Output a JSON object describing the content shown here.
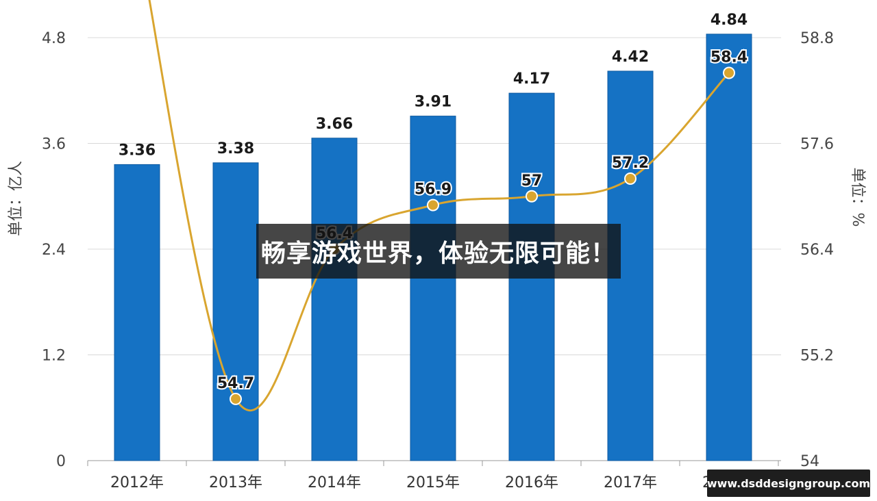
{
  "chart_data": {
    "type": "bar",
    "categories": [
      "2012年",
      "2013年",
      "2014年",
      "2015年",
      "2016年",
      "2017年",
      "2018年"
    ],
    "series": [
      {
        "type": "bar",
        "axis": "left",
        "values": [
          3.36,
          3.38,
          3.66,
          3.91,
          4.17,
          4.42,
          4.84
        ],
        "labels": [
          "3.36",
          "3.38",
          "3.66",
          "3.91",
          "4.17",
          "4.42",
          "4.84"
        ],
        "color": "#1572C4"
      },
      {
        "type": "line",
        "axis": "right",
        "values": [
          60.0,
          54.7,
          56.4,
          56.9,
          57.0,
          57.2,
          58.4
        ],
        "labels": [
          null,
          "54.7",
          "56.4",
          "56.9",
          "57",
          "57.2",
          "58.4"
        ],
        "color": "#D9A52F"
      }
    ],
    "ylabel": "单位：亿人",
    "y2label": "单位：%",
    "ylim": [
      0,
      4.8
    ],
    "y2lim": [
      54,
      58.8
    ],
    "yticks": [
      "0",
      "1.2",
      "2.4",
      "3.6",
      "4.8"
    ],
    "y2ticks": [
      "54",
      "55.2",
      "56.4",
      "57.6",
      "58.8"
    ],
    "grid": true
  },
  "overlay": {
    "banner_text": "畅享游戏世界，体验无限可能！",
    "site_text": "www.dsddesigngroup.com"
  }
}
